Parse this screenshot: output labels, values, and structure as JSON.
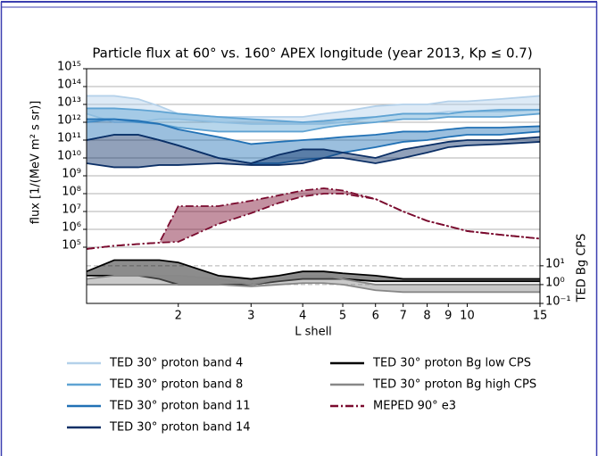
{
  "chart_data": {
    "type": "band",
    "title": "Particle flux at 60° vs. 160° APEX longitude (year 2013, Kp ≤ 0.7)",
    "x_label": "L shell",
    "y_label": "flux [1/(MeV m² s sr)]",
    "y2_label": "TED Bg CPS",
    "x": [
      1.2,
      1.4,
      1.6,
      1.8,
      2,
      2.5,
      3,
      3.5,
      4,
      4.5,
      5,
      6,
      7,
      8,
      9,
      10,
      12,
      15
    ],
    "xlim": [
      1.2,
      15
    ],
    "xticks": [
      2,
      3,
      4,
      5,
      6,
      7,
      8,
      9,
      10,
      15
    ],
    "xlog": true,
    "ylim": [
      70.8,
      1000000000000000.0
    ],
    "ylog": true,
    "grid": true,
    "yticks": [
      {
        "value": 100000.0,
        "label": "10⁵"
      },
      {
        "value": 1000000.0,
        "label": "10⁶"
      },
      {
        "value": 10000000.0,
        "label": "10⁷"
      },
      {
        "value": 100000000.0,
        "label": "10⁸"
      },
      {
        "value": 1000000000.0,
        "label": "10⁹"
      },
      {
        "value": 10000000000.0,
        "label": "10¹⁰"
      },
      {
        "value": 100000000000.0,
        "label": "10¹¹"
      },
      {
        "value": 1000000000000.0,
        "label": "10¹²"
      },
      {
        "value": 10000000000000.0,
        "label": "10¹³"
      },
      {
        "value": 100000000000000.0,
        "label": "10¹⁴"
      },
      {
        "value": 1000000000000000.0,
        "label": "10¹⁵"
      }
    ],
    "y2lim": [
      0.1,
      300000000000.0
    ],
    "y2log": true,
    "y2grid": true,
    "y2ticks": [
      {
        "value": 0.1,
        "label": "10⁻¹"
      },
      {
        "value": 1,
        "label": "10⁰"
      },
      {
        "value": 10,
        "label": "10¹"
      }
    ],
    "legend_columns": 2,
    "series": [
      {
        "name": "TED 30° proton band 4",
        "color": "#b4d1ea",
        "upper": [
          30000000000000.0,
          30000000000000.0,
          20000000000000.0,
          8000000000000.0,
          3000000000000.0,
          2000000000000.0,
          2000000000000.0,
          2000000000000.0,
          2000000000000.0,
          3000000000000.0,
          4000000000000.0,
          8000000000000.0,
          10000000000000.0,
          10000000000000.0,
          15000000000000.0,
          15000000000000.0,
          20000000000000.0,
          30000000000000.0
        ],
        "lower": [
          3000000000000.0,
          1000000000000.0,
          1000000000000.0,
          1500000000000.0,
          1500000000000.0,
          1000000000000.0,
          800000000000.0,
          800000000000.0,
          800000000000.0,
          800000000000.0,
          1000000000000.0,
          2000000000000.0,
          3000000000000.0,
          3000000000000.0,
          4000000000000.0,
          4000000000000.0,
          4000000000000.0,
          5000000000000.0
        ]
      },
      {
        "name": "TED 30° proton band 8",
        "color": "#5fa3d3",
        "upper": [
          6000000000000.0,
          6000000000000.0,
          5000000000000.0,
          4000000000000.0,
          3000000000000.0,
          2000000000000.0,
          1500000000000.0,
          1200000000000.0,
          1000000000000.0,
          1200000000000.0,
          1500000000000.0,
          2000000000000.0,
          3000000000000.0,
          3000000000000.0,
          3000000000000.0,
          4000000000000.0,
          5000000000000.0,
          5000000000000.0
        ],
        "lower": [
          1000000000000.0,
          1500000000000.0,
          1000000000000.0,
          800000000000.0,
          500000000000.0,
          300000000000.0,
          300000000000.0,
          300000000000.0,
          300000000000.0,
          500000000000.0,
          700000000000.0,
          1000000000000.0,
          1500000000000.0,
          1500000000000.0,
          2000000000000.0,
          2000000000000.0,
          2000000000000.0,
          3000000000000.0
        ]
      },
      {
        "name": "TED 30° proton band 11",
        "color": "#2171b5",
        "upper": [
          1500000000000.0,
          1500000000000.0,
          1200000000000.0,
          800000000000.0,
          400000000000.0,
          150000000000.0,
          60000000000.0,
          80000000000.0,
          100000000000.0,
          120000000000.0,
          150000000000.0,
          200000000000.0,
          300000000000.0,
          300000000000.0,
          400000000000.0,
          500000000000.0,
          500000000000.0,
          600000000000.0
        ],
        "lower": [
          100000000000.0,
          200000000000.0,
          200000000000.0,
          100000000000.0,
          50000000000.0,
          10000000000.0,
          5000000000.0,
          5000000000.0,
          8000000000.0,
          10000000000.0,
          20000000000.0,
          40000000000.0,
          80000000000.0,
          100000000000.0,
          150000000000.0,
          200000000000.0,
          200000000000.0,
          300000000000.0
        ]
      },
      {
        "name": "TED 30° proton band 14",
        "color": "#0b2f66",
        "upper": [
          100000000000.0,
          200000000000.0,
          200000000000.0,
          100000000000.0,
          50000000000.0,
          10000000000.0,
          5000000000.0,
          15000000000.0,
          30000000000.0,
          30000000000.0,
          20000000000.0,
          10000000000.0,
          30000000000.0,
          50000000000.0,
          80000000000.0,
          100000000000.0,
          100000000000.0,
          150000000000.0
        ],
        "lower": [
          5000000000.0,
          3000000000.0,
          3000000000.0,
          4000000000.0,
          4000000000.0,
          5000000000.0,
          4000000000.0,
          4000000000.0,
          5000000000.0,
          10000000000.0,
          10000000000.0,
          5000000000.0,
          10000000000.0,
          20000000000.0,
          40000000000.0,
          50000000000.0,
          60000000000.0,
          80000000000.0
        ]
      },
      {
        "name": "TED 30° proton Bg low CPS",
        "color": "#000000",
        "axis": "y2",
        "upper": [
          5,
          20,
          20,
          20,
          15,
          3,
          2,
          3,
          5,
          5,
          4,
          3,
          2,
          2,
          2,
          2,
          2,
          2
        ],
        "lower": [
          3,
          3,
          3,
          2,
          1,
          1,
          1,
          1.5,
          2,
          2,
          2,
          1.5,
          1.5,
          1.5,
          1.5,
          1.5,
          1.5,
          1.5
        ]
      },
      {
        "name": "TED 30° proton Bg high CPS",
        "color": "#888888",
        "axis": "y2",
        "upper": [
          2,
          3,
          3,
          3,
          3,
          2,
          1,
          2,
          3,
          3,
          2,
          1,
          1,
          1,
          1,
          1,
          1,
          1
        ],
        "lower": [
          1,
          1,
          1,
          1,
          1,
          1,
          0.8,
          1,
          1.2,
          1.2,
          1,
          0.5,
          0.4,
          0.4,
          0.4,
          0.4,
          0.4,
          0.4
        ]
      },
      {
        "name": "MEPED 90° e3",
        "color": "#7a0a2e",
        "dash": "dashdot",
        "upper": [
          80000.0,
          120000.0,
          150000.0,
          180000.0,
          20000000.0,
          20000000.0,
          40000000.0,
          80000000.0,
          150000000.0,
          200000000.0,
          150000000.0,
          50000000.0,
          10000000.0,
          3000000.0,
          1500000.0,
          800000.0,
          500000.0,
          300000.0
        ],
        "lower": [
          80000.0,
          120000.0,
          150000.0,
          180000.0,
          200000.0,
          2000000.0,
          8000000.0,
          30000000.0,
          70000000.0,
          100000000.0,
          100000000.0,
          50000000.0,
          10000000.0,
          3000000.0,
          1500000.0,
          800000.0,
          500000.0,
          300000.0
        ]
      }
    ]
  }
}
